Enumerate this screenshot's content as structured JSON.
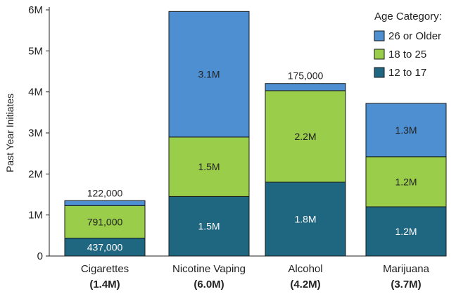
{
  "chart_data": {
    "type": "bar",
    "stacked": true,
    "ylabel": "Past Year Initiates",
    "xlabel": "",
    "ylim": [
      0,
      6000000
    ],
    "yticks": [
      0,
      1000000,
      2000000,
      3000000,
      4000000,
      5000000,
      6000000
    ],
    "ytick_labels": [
      "0",
      "1M",
      "2M",
      "3M",
      "4M",
      "5M",
      "6M"
    ],
    "categories": [
      "Cigarettes",
      "Nicotine Vaping",
      "Alcohol",
      "Marijuana"
    ],
    "category_totals": [
      "(1.4M)",
      "(6.0M)",
      "(4.2M)",
      "(3.7M)"
    ],
    "legend": {
      "title": "Age Category:",
      "position": "top-right"
    },
    "series": [
      {
        "name": "12 to 17",
        "color": "#1f6680",
        "text_color": "#ffffff",
        "values": [
          437000,
          1450000,
          1800000,
          1200000
        ],
        "labels": [
          "437,000",
          "1.5M",
          "1.8M",
          "1.2M"
        ]
      },
      {
        "name": "18 to 25",
        "color": "#9acd4a",
        "text_color": "#222222",
        "values": [
          791000,
          1450000,
          2230000,
          1220000
        ],
        "labels": [
          "791,000",
          "1.5M",
          "2.2M",
          "1.2M"
        ]
      },
      {
        "name": "26 or Older",
        "color": "#4d8fd1",
        "text_color": "#222222",
        "values": [
          122000,
          3060000,
          175000,
          1300000
        ],
        "labels": [
          "122,000",
          "3.1M",
          "175,000",
          "1.3M"
        ],
        "label_above": [
          true,
          false,
          true,
          false
        ]
      }
    ],
    "grid": false
  }
}
